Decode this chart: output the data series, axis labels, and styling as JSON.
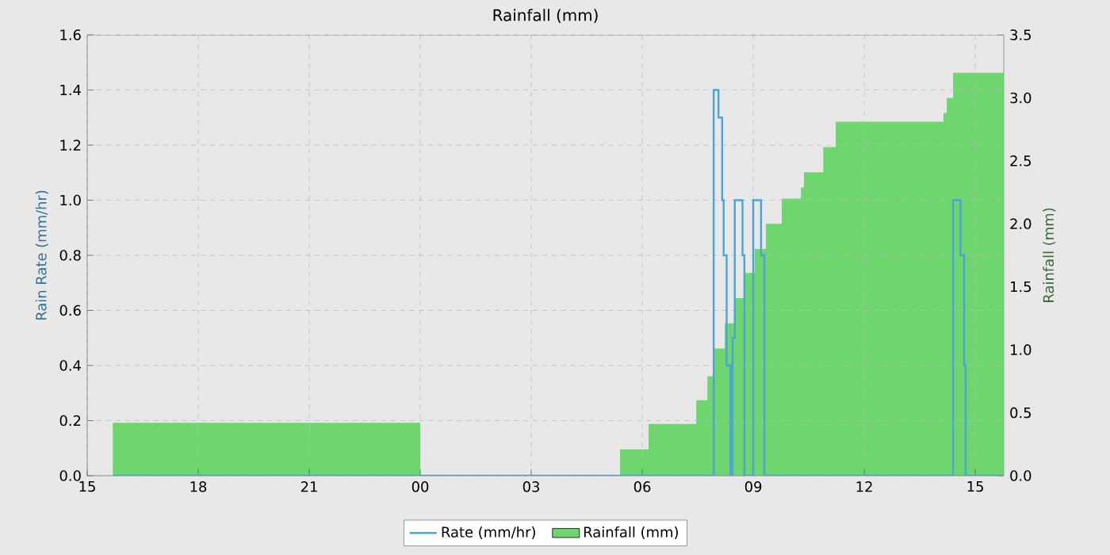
{
  "chart_data": {
    "type": "step",
    "title": "Rainfall (mm)",
    "ylabel": "Rain Rate (mm/hr)",
    "y2label": "Rainfall (mm)",
    "xlim": [
      15,
      39.77
    ],
    "xticks": [
      {
        "value": 15,
        "label": "15"
      },
      {
        "value": 18,
        "label": "18"
      },
      {
        "value": 21,
        "label": "21"
      },
      {
        "value": 24,
        "label": "00"
      },
      {
        "value": 27,
        "label": "03"
      },
      {
        "value": 30,
        "label": "06"
      },
      {
        "value": 33,
        "label": "09"
      },
      {
        "value": 36,
        "label": "12"
      },
      {
        "value": 39,
        "label": "15"
      }
    ],
    "ylim": [
      0,
      1.6
    ],
    "yticks": [
      {
        "value": 0,
        "label": "0.0"
      },
      {
        "value": 0.2,
        "label": "0.2"
      },
      {
        "value": 0.4,
        "label": "0.4"
      },
      {
        "value": 0.6,
        "label": "0.6"
      },
      {
        "value": 0.8,
        "label": "0.8"
      },
      {
        "value": 1.0,
        "label": "1.0"
      },
      {
        "value": 1.2,
        "label": "1.2"
      },
      {
        "value": 1.4,
        "label": "1.4"
      },
      {
        "value": 1.6,
        "label": "1.6"
      }
    ],
    "y2lim": [
      0,
      3.5
    ],
    "y2ticks": [
      {
        "value": 0,
        "label": "0.0"
      },
      {
        "value": 0.5,
        "label": "0.5"
      },
      {
        "value": 1.0,
        "label": "1.0"
      },
      {
        "value": 1.5,
        "label": "1.5"
      },
      {
        "value": 2.0,
        "label": "2.0"
      },
      {
        "value": 2.5,
        "label": "2.5"
      },
      {
        "value": 3.0,
        "label": "3.0"
      },
      {
        "value": 3.5,
        "label": "3.5"
      }
    ],
    "grid": true,
    "legend": "bottom",
    "series": [
      {
        "name": "Rate (mm/hr)",
        "color": "#4aa3d9",
        "x": [
          15.69,
          31.93,
          32.06,
          32.16,
          32.2,
          32.28,
          32.38,
          32.44,
          32.5,
          32.71,
          32.76,
          33.0,
          33.21,
          33.3,
          38.4,
          38.6,
          38.7,
          38.74,
          39.77
        ],
        "values": [
          0,
          1.4,
          1.3,
          1.0,
          0.8,
          0.4,
          0,
          0.5,
          1.0,
          0.8,
          0,
          1.0,
          0.8,
          0,
          1.0,
          0.8,
          0.4,
          0,
          0
        ]
      },
      {
        "name": "Rainfall (mm)",
        "type": "area",
        "axis": "y2",
        "color": "#6fd66f",
        "x": [
          15.69,
          24,
          29.4,
          30.17,
          31.46,
          31.76,
          31.93,
          32.23,
          32.49,
          32.74,
          33.04,
          33.34,
          33.77,
          34.29,
          34.37,
          34.89,
          35.23,
          38.14,
          38.23,
          38.4,
          39.77
        ],
        "values": [
          0.42,
          0,
          0.21,
          0.41,
          0.6,
          0.79,
          1.01,
          1.21,
          1.41,
          1.61,
          1.8,
          2.0,
          2.2,
          2.29,
          2.41,
          2.61,
          2.81,
          2.88,
          3.0,
          3.2,
          3.2
        ]
      }
    ]
  }
}
